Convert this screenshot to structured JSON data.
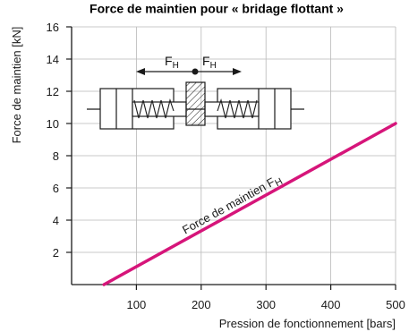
{
  "chart_data": {
    "type": "line",
    "title": "Force de maintien pour « bridage flottant »",
    "xlabel": "Pression de fonctionnement [bars]",
    "ylabel": "Force de maintien [kN]",
    "xlim": [
      0,
      500
    ],
    "ylim": [
      0,
      16
    ],
    "xticks": [
      100,
      200,
      300,
      400,
      500
    ],
    "yticks": [
      2,
      4,
      6,
      8,
      10,
      12,
      14,
      16
    ],
    "grid": true,
    "series": [
      {
        "name": "Force de maintien F_H",
        "x": [
          50,
          500
        ],
        "y": [
          0,
          10
        ],
        "color": "#d6157a"
      }
    ],
    "series_label": {
      "text": "Force de maintien F",
      "subscript": "H"
    },
    "diagram_labels": {
      "force_left": "F",
      "force_right": "F",
      "subscript": "H"
    },
    "colors": {
      "line": "#d6157a",
      "grid": "#b8b8b8",
      "axis": "#1a1a1a"
    }
  }
}
